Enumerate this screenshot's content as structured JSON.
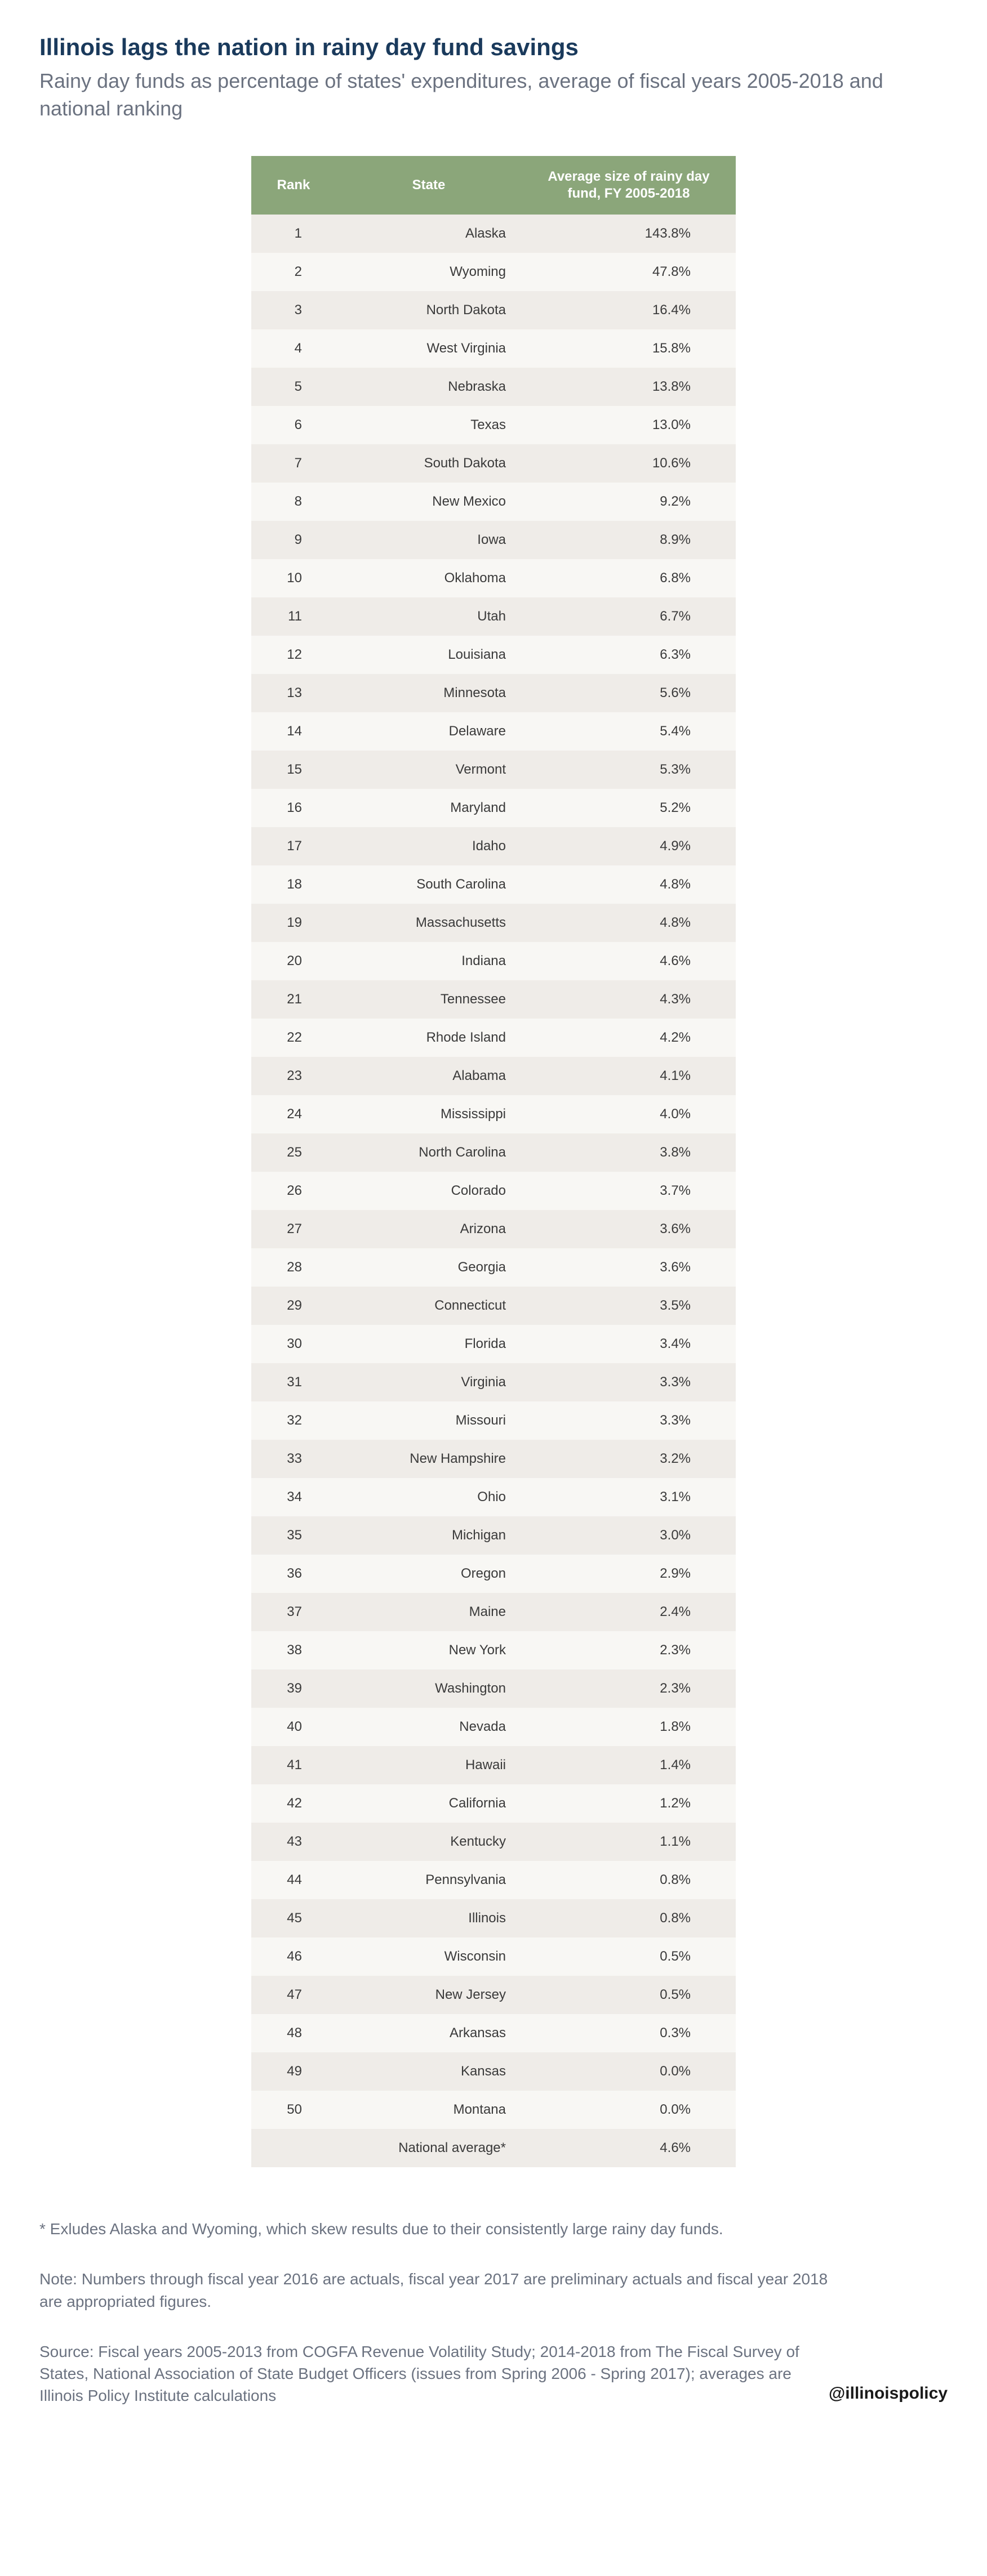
{
  "title": "Illinois lags the nation in rainy day fund savings",
  "subtitle": "Rainy day funds as percentage of states' expenditures, average of fiscal years 2005-2018 and national ranking",
  "columns": [
    "Rank",
    "State",
    "Average size of rainy day fund, FY 2005-2018"
  ],
  "rows": [
    {
      "rank": "1",
      "state": "Alaska",
      "value": "143.8%"
    },
    {
      "rank": "2",
      "state": "Wyoming",
      "value": "47.8%"
    },
    {
      "rank": "3",
      "state": "North Dakota",
      "value": "16.4%"
    },
    {
      "rank": "4",
      "state": "West Virginia",
      "value": "15.8%"
    },
    {
      "rank": "5",
      "state": "Nebraska",
      "value": "13.8%"
    },
    {
      "rank": "6",
      "state": "Texas",
      "value": "13.0%"
    },
    {
      "rank": "7",
      "state": "South Dakota",
      "value": "10.6%"
    },
    {
      "rank": "8",
      "state": "New Mexico",
      "value": "9.2%"
    },
    {
      "rank": "9",
      "state": "Iowa",
      "value": "8.9%"
    },
    {
      "rank": "10",
      "state": "Oklahoma",
      "value": "6.8%"
    },
    {
      "rank": "11",
      "state": "Utah",
      "value": "6.7%"
    },
    {
      "rank": "12",
      "state": "Louisiana",
      "value": "6.3%"
    },
    {
      "rank": "13",
      "state": "Minnesota",
      "value": "5.6%"
    },
    {
      "rank": "14",
      "state": "Delaware",
      "value": "5.4%"
    },
    {
      "rank": "15",
      "state": "Vermont",
      "value": "5.3%"
    },
    {
      "rank": "16",
      "state": "Maryland",
      "value": "5.2%"
    },
    {
      "rank": "17",
      "state": "Idaho",
      "value": "4.9%"
    },
    {
      "rank": "18",
      "state": "South Carolina",
      "value": "4.8%"
    },
    {
      "rank": "19",
      "state": "Massachusetts",
      "value": "4.8%"
    },
    {
      "rank": "20",
      "state": "Indiana",
      "value": "4.6%"
    },
    {
      "rank": "21",
      "state": "Tennessee",
      "value": "4.3%"
    },
    {
      "rank": "22",
      "state": "Rhode Island",
      "value": "4.2%"
    },
    {
      "rank": "23",
      "state": "Alabama",
      "value": "4.1%"
    },
    {
      "rank": "24",
      "state": "Mississippi",
      "value": "4.0%"
    },
    {
      "rank": "25",
      "state": "North Carolina",
      "value": "3.8%"
    },
    {
      "rank": "26",
      "state": "Colorado",
      "value": "3.7%"
    },
    {
      "rank": "27",
      "state": "Arizona",
      "value": "3.6%"
    },
    {
      "rank": "28",
      "state": "Georgia",
      "value": "3.6%"
    },
    {
      "rank": "29",
      "state": "Connecticut",
      "value": "3.5%"
    },
    {
      "rank": "30",
      "state": "Florida",
      "value": "3.4%"
    },
    {
      "rank": "31",
      "state": "Virginia",
      "value": "3.3%"
    },
    {
      "rank": "32",
      "state": "Missouri",
      "value": "3.3%"
    },
    {
      "rank": "33",
      "state": "New Hampshire",
      "value": "3.2%"
    },
    {
      "rank": "34",
      "state": "Ohio",
      "value": "3.1%"
    },
    {
      "rank": "35",
      "state": "Michigan",
      "value": "3.0%"
    },
    {
      "rank": "36",
      "state": "Oregon",
      "value": "2.9%"
    },
    {
      "rank": "37",
      "state": "Maine",
      "value": "2.4%"
    },
    {
      "rank": "38",
      "state": "New York",
      "value": "2.3%"
    },
    {
      "rank": "39",
      "state": "Washington",
      "value": "2.3%"
    },
    {
      "rank": "40",
      "state": "Nevada",
      "value": "1.8%"
    },
    {
      "rank": "41",
      "state": "Hawaii",
      "value": "1.4%"
    },
    {
      "rank": "42",
      "state": "California",
      "value": "1.2%"
    },
    {
      "rank": "43",
      "state": "Kentucky",
      "value": "1.1%"
    },
    {
      "rank": "44",
      "state": "Pennsylvania",
      "value": "0.8%"
    },
    {
      "rank": "45",
      "state": "Illinois",
      "value": "0.8%"
    },
    {
      "rank": "46",
      "state": "Wisconsin",
      "value": "0.5%"
    },
    {
      "rank": "47",
      "state": "New Jersey",
      "value": "0.5%"
    },
    {
      "rank": "48",
      "state": "Arkansas",
      "value": "0.3%"
    },
    {
      "rank": "49",
      "state": "Kansas",
      "value": "0.0%"
    },
    {
      "rank": "50",
      "state": "Montana",
      "value": "0.0%"
    },
    {
      "rank": "",
      "state": "National average*",
      "value": "4.6%"
    }
  ],
  "footnote": "* Exludes Alaska and Wyoming, which skew results due to their consistently large rainy day funds.",
  "note": "Note: Numbers through fiscal year 2016 are actuals, fiscal year 2017 are preliminary actuals and fiscal year 2018 are appropriated figures.",
  "source": "Source: Fiscal years 2005-2013 from COGFA Revenue Volatility Study; 2014-2018 from The Fiscal Survey of States, National Association of State Budget Officers (issues from Spring 2006 - Spring 2017); averages are Illinois Policy Institute calculations",
  "handle": "@illinoispolicy",
  "colors": {
    "title": "#1a3a5c",
    "subtitle": "#6b7280",
    "header_bg": "#8ba67a",
    "header_text": "#ffffff",
    "row_odd": "#efece8",
    "row_even": "#f8f7f4",
    "cell_text": "#3a3a3a"
  }
}
